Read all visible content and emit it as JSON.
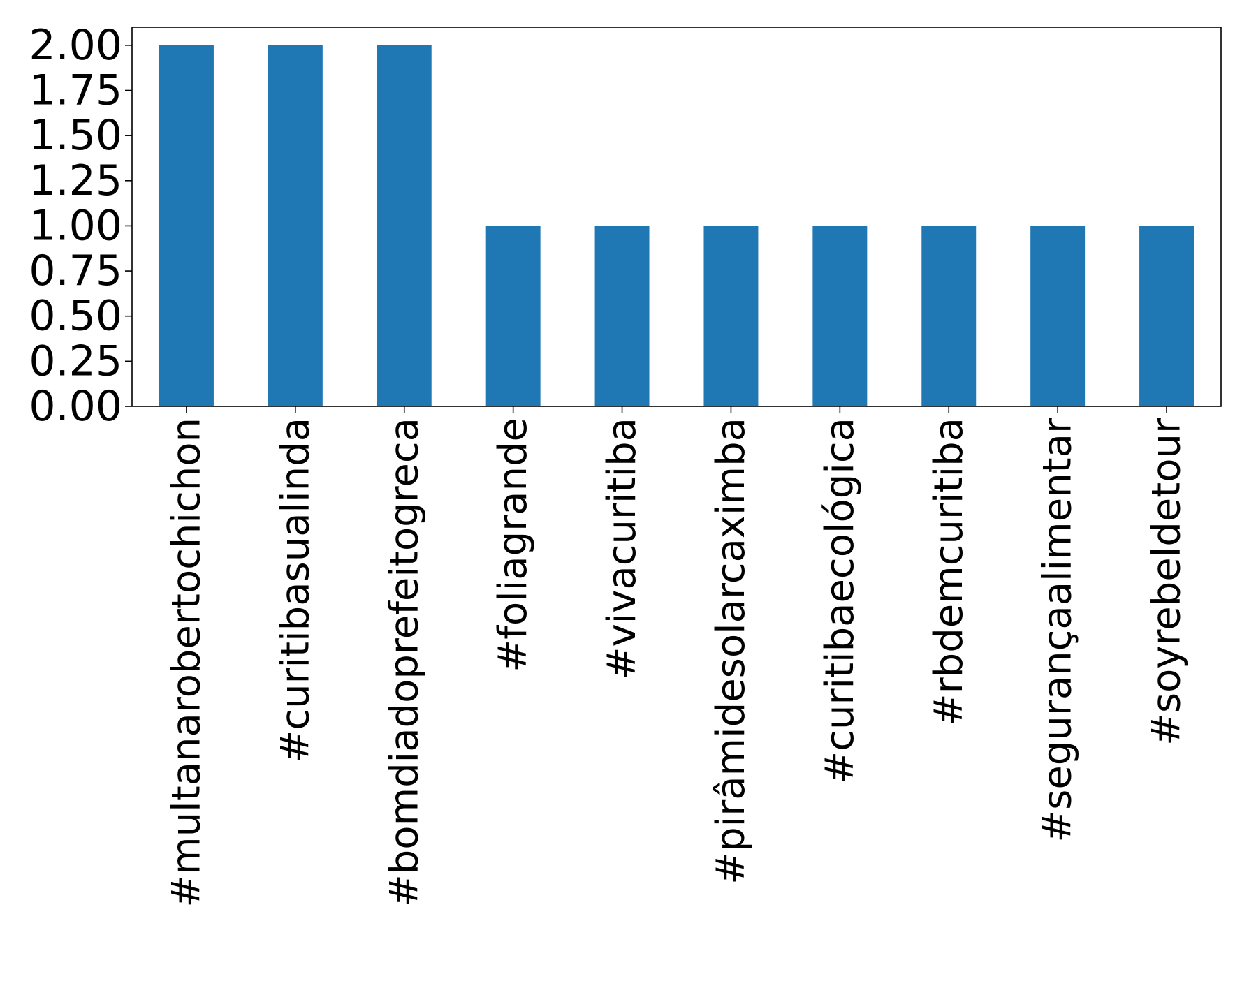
{
  "chart_data": {
    "type": "bar",
    "title": "",
    "xlabel": "",
    "ylabel": "",
    "categories": [
      "#multanarobertochichon",
      "#curitibasualinda",
      "#bomdiadoprefeitogreca",
      "#foliagrande",
      "#vivacuritiba",
      "#pirâmidesolarcaximba",
      "#curitibaecológica",
      "#rbdemcuritiba",
      "#segurançaalimentar",
      "#soyrebeldetour"
    ],
    "values": [
      2,
      2,
      2,
      1,
      1,
      1,
      1,
      1,
      1,
      1
    ],
    "ylim": [
      0,
      2.1
    ],
    "yticks": [
      "0.00",
      "0.25",
      "0.50",
      "0.75",
      "1.00",
      "1.25",
      "1.50",
      "1.75",
      "2.00"
    ],
    "grid": false,
    "legend": "none",
    "bar_color": "#1f77b4"
  }
}
